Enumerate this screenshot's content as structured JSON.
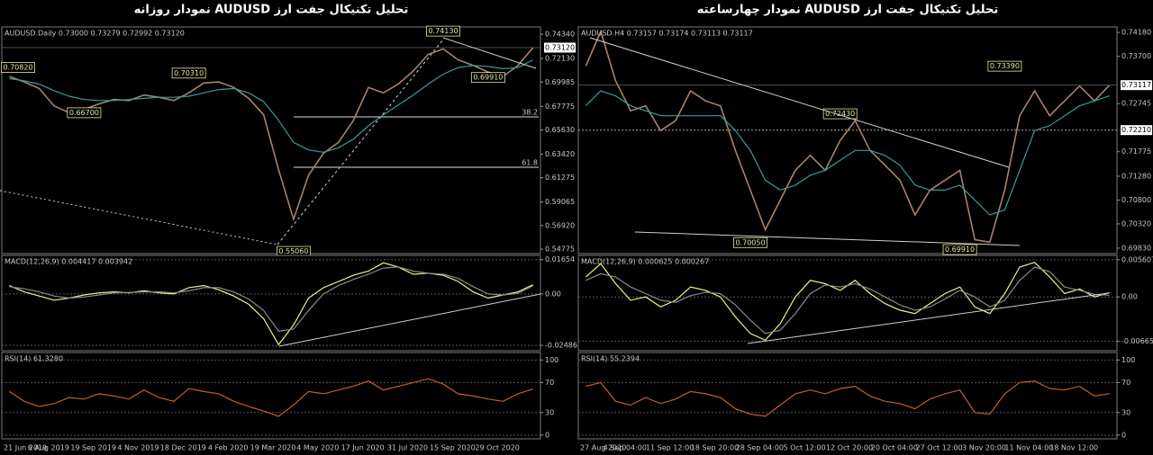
{
  "chart_data": [
    {
      "type": "line",
      "title": "تحلیل تکنیکال جفت ارز AUDUSD نمودار روزانه",
      "x": [
        "21 Jun 2019",
        null,
        null,
        "6 Aug 2019",
        null,
        null,
        "19 Sep 2019",
        null,
        null,
        "4 Nov 2019",
        null,
        null,
        "18 Dec 2019",
        null,
        null,
        "4 Feb 2020",
        null,
        null,
        "19 Mar 2020",
        null,
        null,
        "4 May 2020",
        null,
        null,
        "17 Jun 2020",
        null,
        null,
        "31 Jul 2020",
        null,
        null,
        "15 Sep 2020",
        null,
        null,
        "29 Oct 2020",
        null,
        null
      ],
      "panels": [
        {
          "header": "AUDUSD.Daily 0.73000 0.73279 0.72992 0.73120",
          "ylim": [
            0.5437,
            0.75
          ],
          "yticks": [
            {
              "value": 0.7434,
              "label": "0.74340"
            },
            {
              "value": 0.7213,
              "label": "0.72130"
            },
            0.69985,
            0.67775,
            {
              "value": 0.6563,
              "label": "0.65630"
            },
            {
              "value": 0.6342,
              "label": "0.63420"
            },
            0.61275,
            0.59065,
            {
              "value": 0.5692,
              "label": "0.56920"
            },
            0.54775
          ],
          "last_price": {
            "value": 0.7312,
            "label": "0.73120"
          },
          "series": [
            {
              "name": "AUDUSD",
              "color": "#a8826e",
              "values": [
                0.705,
                0.7,
                0.694,
                0.678,
                0.672,
                0.675,
                0.68,
                0.684,
                0.683,
                0.688,
                0.686,
                0.683,
                0.69,
                0.699,
                0.7,
                0.695,
                0.685,
                0.67,
                0.62,
                0.575,
                0.615,
                0.635,
                0.645,
                0.665,
                0.695,
                0.69,
                0.698,
                0.71,
                0.725,
                0.73,
                0.72,
                0.715,
                0.709,
                0.705,
                0.715,
                0.7312
              ]
            },
            {
              "name": "MA",
              "color": "#3a9a9a",
              "values": [
                0.703,
                0.701,
                0.698,
                0.692,
                0.687,
                0.684,
                0.683,
                0.683,
                0.684,
                0.685,
                0.686,
                0.686,
                0.687,
                0.69,
                0.693,
                0.694,
                0.69,
                0.682,
                0.665,
                0.645,
                0.638,
                0.636,
                0.64,
                0.648,
                0.66,
                0.67,
                0.679,
                0.688,
                0.698,
                0.707,
                0.713,
                0.715,
                0.714,
                0.712,
                0.713,
                0.72
              ]
            }
          ],
          "annotations": [
            {
              "label": "0.70820",
              "value": 0.7082,
              "at": 0
            },
            {
              "label": "0.66700",
              "value": 0.667,
              "at": 5
            },
            {
              "label": "0.70310",
              "value": 0.7031,
              "at": 12
            },
            {
              "label": "0.55060",
              "value": 0.5506,
              "at": 19
            },
            {
              "label": "0.74130",
              "value": 0.7413,
              "at": 29
            },
            {
              "label": "0.69910",
              "value": 0.6991,
              "at": 32
            }
          ],
          "fib_levels": [
            {
              "label": "38.2",
              "value": 0.6681
            },
            {
              "label": "61.8",
              "value": 0.6223
            }
          ]
        },
        {
          "header": "MACD(12,26,9) 0.004417 0.003942",
          "ylim": [
            -0.0274,
            0.0186
          ],
          "grid": true,
          "yticks": [
            0.01654,
            {
              "value": 0,
              "label": "0.00"
            },
            -0.02486
          ],
          "series": [
            {
              "name": "MACD",
              "color": "#f0f08c",
              "values": [
                0.004,
                0.001,
                -0.001,
                -0.003,
                -0.002,
                -0.0005,
                0.0005,
                0.001,
                0.0005,
                0.0015,
                0.0005,
                0,
                0.003,
                0.004,
                0.002,
                -0.001,
                -0.005,
                -0.012,
                -0.0245,
                -0.015,
                -0.002,
                0.003,
                0.006,
                0.009,
                0.011,
                0.015,
                0.013,
                0.0095,
                0.01,
                0.009,
                0.006,
                0.001,
                -0.002,
                -0.0005,
                0.001,
                0.0044
              ]
            },
            {
              "name": "Signal",
              "color": "#8a8a8a",
              "values": [
                0.0035,
                0.0025,
                0.001,
                -0.001,
                -0.002,
                -0.0015,
                -0.0005,
                0.0005,
                0.0007,
                0.001,
                0.001,
                0.0005,
                0.0015,
                0.003,
                0.003,
                0.001,
                -0.0025,
                -0.008,
                -0.018,
                -0.017,
                -0.008,
                0,
                0.004,
                0.007,
                0.0095,
                0.0125,
                0.013,
                0.011,
                0.01,
                0.0095,
                0.0075,
                0.0035,
                0,
                -0.0005,
                0.0003,
                0.0039
              ]
            }
          ]
        },
        {
          "header": "RSI(14) 61.3280",
          "ylim": [
            -5,
            110
          ],
          "grid": true,
          "yticks": [
            100,
            70,
            30,
            0
          ],
          "series": [
            {
              "name": "RSI",
              "color": "#c0602a",
              "values": [
                58,
                45,
                38,
                42,
                50,
                48,
                55,
                52,
                48,
                60,
                50,
                45,
                62,
                58,
                55,
                45,
                38,
                32,
                25,
                40,
                58,
                55,
                60,
                65,
                72,
                60,
                65,
                70,
                75,
                68,
                55,
                52,
                48,
                45,
                55,
                61.328
              ]
            }
          ]
        }
      ]
    },
    {
      "type": "line",
      "title": "تحلیل تکنیکال جفت ارز AUDUSD نمودار چهارساعته",
      "x": [
        "27 Aug 2020",
        null,
        null,
        "4 Sep 04:00",
        null,
        null,
        "11 Sep 12:00",
        null,
        null,
        "18 Sep 20:00",
        null,
        null,
        "28 Sep 04:00",
        null,
        null,
        "5 Oct 12:00",
        null,
        null,
        "12 Oct 20:00",
        null,
        null,
        "20 Oct 04:00",
        null,
        null,
        "27 Oct 12:00",
        null,
        null,
        "3 Nov 20:00",
        null,
        null,
        "11 Nov 04:00",
        null,
        null,
        "18 Nov 12:00",
        null,
        null
      ],
      "panels": [
        {
          "header": "AUDUSD.H4 0.73157 0.73174 0.73113 0.73117",
          "ylim": [
            0.6972,
            0.7429
          ],
          "yticks": [
            {
              "value": 0.7418,
              "label": "0.74180"
            },
            {
              "value": 0.737,
              "label": "0.73700"
            },
            0.72745,
            0.71775,
            {
              "value": 0.7128,
              "label": "0.71280"
            },
            {
              "value": 0.708,
              "label": "0.70800"
            },
            {
              "value": 0.7032,
              "label": "0.70320"
            },
            {
              "value": 0.6983,
              "label": "0.69830"
            }
          ],
          "last_price": {
            "value": 0.73117,
            "label": "0.73117"
          },
          "level": {
            "value": 0.7221,
            "label": "0.72210"
          },
          "series": [
            {
              "name": "AUDUSD",
              "color": "#a8826e",
              "values": [
                0.735,
                0.742,
                0.732,
                0.726,
                0.727,
                0.722,
                0.724,
                0.73,
                0.728,
                0.727,
                0.718,
                0.71,
                0.702,
                0.708,
                0.714,
                0.717,
                0.714,
                0.72,
                0.724,
                0.718,
                0.715,
                0.712,
                0.705,
                0.71,
                0.712,
                0.714,
                0.7,
                0.6995,
                0.71,
                0.725,
                0.73,
                0.725,
                0.728,
                0.731,
                0.728,
                0.73117
              ]
            },
            {
              "name": "MA",
              "color": "#3a9a9a",
              "values": [
                0.727,
                0.73,
                0.729,
                0.727,
                0.726,
                0.725,
                0.725,
                0.725,
                0.725,
                0.725,
                0.722,
                0.718,
                0.712,
                0.71,
                0.711,
                0.713,
                0.714,
                0.716,
                0.718,
                0.718,
                0.717,
                0.715,
                0.711,
                0.71,
                0.71,
                0.711,
                0.708,
                0.705,
                0.706,
                0.714,
                0.722,
                0.723,
                0.725,
                0.727,
                0.728,
                0.729
              ]
            }
          ],
          "annotations": [
            {
              "label": "0.70050",
              "value": 0.7005,
              "at": 11
            },
            {
              "label": "0.72430",
              "value": 0.7243,
              "at": 17
            },
            {
              "label": "0.69910",
              "value": 0.6991,
              "at": 25
            },
            {
              "label": "0.73390",
              "value": 0.7339,
              "at": 28
            }
          ]
        },
        {
          "header": "MACD(12,26,9) 0.000625 0.000267",
          "ylim": [
            -0.00809,
            0.00626
          ],
          "grid": true,
          "yticks": [
            0.005607,
            {
              "value": 0,
              "label": "0.00"
            },
            -0.006656
          ],
          "series": [
            {
              "name": "MACD",
              "color": "#f0f08c",
              "values": [
                0.003,
                0.005,
                0.002,
                -0.0005,
                0,
                -0.0015,
                -0.0005,
                0.0015,
                0.001,
                0,
                -0.003,
                -0.0055,
                -0.0065,
                -0.004,
                0,
                0.0025,
                0.002,
                0.001,
                0.0025,
                0.0005,
                -0.001,
                -0.002,
                -0.0025,
                -0.001,
                0.0005,
                0.0015,
                -0.0015,
                -0.0025,
                0.0005,
                0.0045,
                0.0052,
                0.003,
                0.0005,
                0.0012,
                0,
                0.000625
              ]
            },
            {
              "name": "Signal",
              "color": "#8a8a8a",
              "values": [
                0.0025,
                0.0035,
                0.003,
                0.0015,
                0.0005,
                -0.0005,
                -0.0008,
                0.0002,
                0.0007,
                0.0005,
                -0.0012,
                -0.0035,
                -0.0055,
                -0.005,
                -0.0025,
                0.0005,
                0.0018,
                0.0015,
                0.002,
                0.0012,
                0,
                -0.0012,
                -0.002,
                -0.0015,
                -0.0003,
                0.001,
                0,
                -0.0015,
                -0.0005,
                0.0025,
                0.0045,
                0.0038,
                0.0015,
                0.001,
                0.0004,
                0.000267
              ]
            }
          ]
        },
        {
          "header": "RSI(14) 55.2394",
          "ylim": [
            -5,
            110
          ],
          "grid": true,
          "yticks": [
            100,
            70,
            30,
            0
          ],
          "series": [
            {
              "name": "RSI",
              "color": "#c0602a",
              "values": [
                65,
                70,
                45,
                40,
                50,
                42,
                48,
                58,
                55,
                50,
                35,
                28,
                25,
                40,
                55,
                60,
                55,
                62,
                65,
                52,
                45,
                42,
                35,
                48,
                55,
                60,
                30,
                28,
                55,
                70,
                72,
                62,
                60,
                65,
                52,
                55.2394
              ]
            }
          ]
        }
      ]
    }
  ]
}
